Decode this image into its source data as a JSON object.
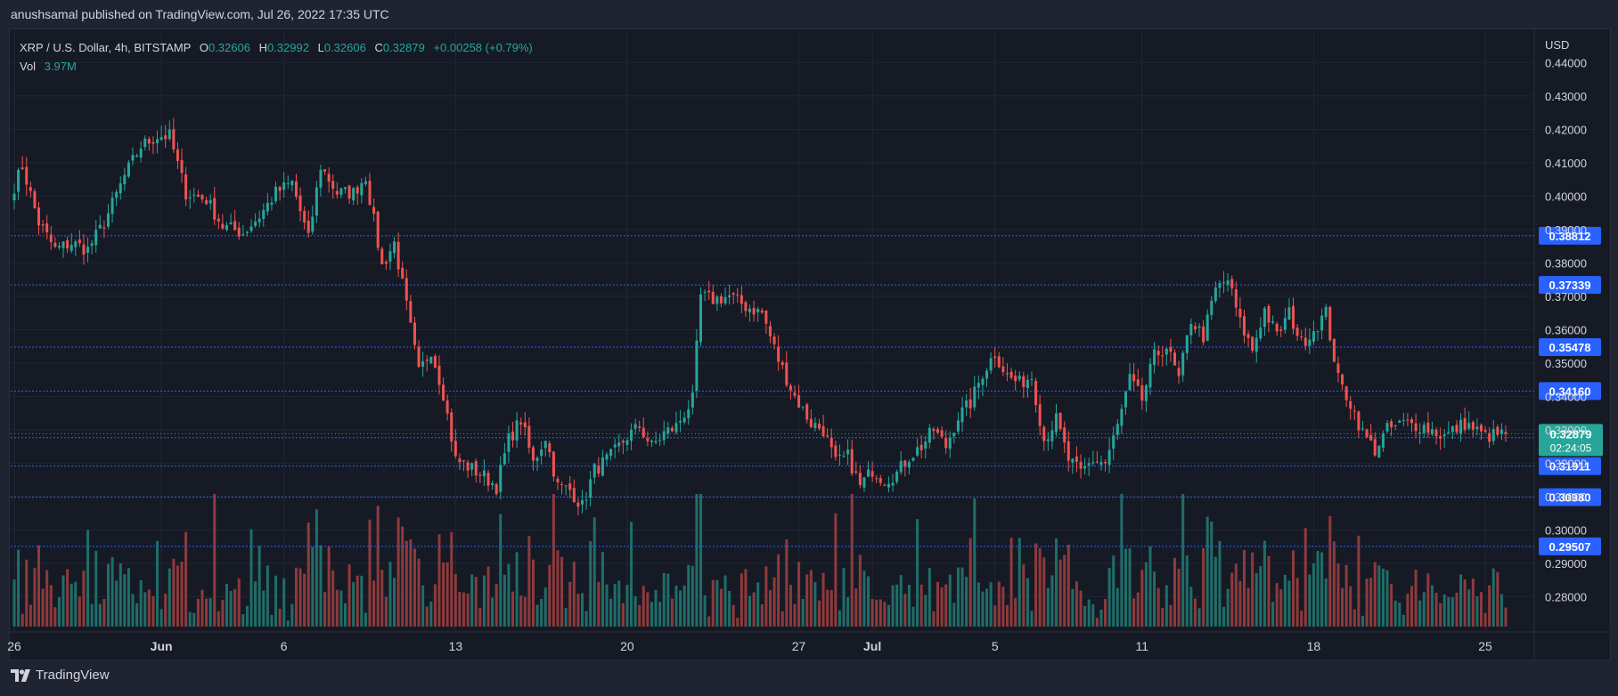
{
  "header": {
    "published_text": "anushsamal published on TradingView.com, Jul 26, 2022 17:35 UTC"
  },
  "brand": {
    "name": "TradingView"
  },
  "legend": {
    "symbol": "XRP / U.S. Dollar, 4h, BITSTAMP",
    "o_label": "O",
    "o_value": "0.32606",
    "h_label": "H",
    "h_value": "0.32992",
    "l_label": "L",
    "l_value": "0.32606",
    "c_label": "C",
    "c_value": "0.32879",
    "change": "+0.00258 (+0.79%)",
    "vol_label": "Vol",
    "vol_value": "3.97M"
  },
  "colors": {
    "up": "#26a69a",
    "down": "#ef5350",
    "up_vol": "#1f6e69",
    "down_vol": "#8e3a3c",
    "level_line": "#2962ff",
    "level_tag": "#2962ff",
    "price_tag": "#26a69a",
    "grid": "#232733",
    "background": "#161a25",
    "axis_text": "#d1d4dc"
  },
  "chart_data": {
    "type": "candlestick",
    "symbol": "XRP / U.S. Dollar",
    "interval": "4h",
    "exchange": "BITSTAMP",
    "currency_label": "USD",
    "y_ticks": [
      "0.44000",
      "0.43000",
      "0.42000",
      "0.41000",
      "0.40000",
      "0.39000",
      "0.38000",
      "0.37000",
      "0.36000",
      "0.35000",
      "0.34000",
      "0.33000",
      "0.32000",
      "0.31000",
      "0.30000",
      "0.29000",
      "0.28000"
    ],
    "ylim": [
      0.2745,
      0.4465
    ],
    "x_ticks": [
      {
        "label": "26",
        "index": 0
      },
      {
        "label": "Jun",
        "index": 36
      },
      {
        "label": "6",
        "index": 66
      },
      {
        "label": "13",
        "index": 108
      },
      {
        "label": "20",
        "index": 150
      },
      {
        "label": "27",
        "index": 192
      },
      {
        "label": "Jul",
        "index": 210
      },
      {
        "label": "5",
        "index": 240
      },
      {
        "label": "11",
        "index": 276
      },
      {
        "label": "18",
        "index": 318
      },
      {
        "label": "25",
        "index": 360
      }
    ],
    "total_candles": 366,
    "horizontal_levels": [
      "0.38812",
      "0.37339",
      "0.35478",
      "0.34160",
      "0.32764",
      "0.31911",
      "0.30980",
      "0.29507"
    ],
    "current_price": "0.32879",
    "countdown": "02:24:05",
    "last_close": 0.32879,
    "anchors": [
      [
        0,
        0.403
      ],
      [
        2,
        0.409
      ],
      [
        6,
        0.392
      ],
      [
        10,
        0.384
      ],
      [
        14,
        0.386
      ],
      [
        18,
        0.384
      ],
      [
        22,
        0.392
      ],
      [
        27,
        0.406
      ],
      [
        31,
        0.415
      ],
      [
        35,
        0.418
      ],
      [
        38,
        0.418
      ],
      [
        42,
        0.401
      ],
      [
        47,
        0.399
      ],
      [
        51,
        0.391
      ],
      [
        56,
        0.389
      ],
      [
        60,
        0.394
      ],
      [
        64,
        0.401
      ],
      [
        68,
        0.404
      ],
      [
        72,
        0.387
      ],
      [
        75,
        0.409
      ],
      [
        79,
        0.401
      ],
      [
        83,
        0.401
      ],
      [
        86,
        0.406
      ],
      [
        90,
        0.379
      ],
      [
        93,
        0.386
      ],
      [
        96,
        0.367
      ],
      [
        99,
        0.347
      ],
      [
        102,
        0.354
      ],
      [
        105,
        0.341
      ],
      [
        108,
        0.321
      ],
      [
        111,
        0.319
      ],
      [
        115,
        0.316
      ],
      [
        118,
        0.313
      ],
      [
        121,
        0.327
      ],
      [
        124,
        0.333
      ],
      [
        127,
        0.32
      ],
      [
        130,
        0.328
      ],
      [
        133,
        0.313
      ],
      [
        136,
        0.312
      ],
      [
        139,
        0.307
      ],
      [
        142,
        0.318
      ],
      [
        146,
        0.322
      ],
      [
        150,
        0.328
      ],
      [
        153,
        0.331
      ],
      [
        156,
        0.325
      ],
      [
        159,
        0.329
      ],
      [
        162,
        0.331
      ],
      [
        166,
        0.339
      ],
      [
        168,
        0.37
      ],
      [
        171,
        0.369
      ],
      [
        175,
        0.37
      ],
      [
        179,
        0.367
      ],
      [
        183,
        0.365
      ],
      [
        187,
        0.351
      ],
      [
        191,
        0.34
      ],
      [
        195,
        0.332
      ],
      [
        198,
        0.33
      ],
      [
        201,
        0.32
      ],
      [
        204,
        0.322
      ],
      [
        207,
        0.313
      ],
      [
        210,
        0.318
      ],
      [
        213,
        0.315
      ],
      [
        216,
        0.317
      ],
      [
        219,
        0.322
      ],
      [
        222,
        0.325
      ],
      [
        225,
        0.33
      ],
      [
        228,
        0.325
      ],
      [
        231,
        0.334
      ],
      [
        234,
        0.338
      ],
      [
        237,
        0.347
      ],
      [
        240,
        0.353
      ],
      [
        243,
        0.346
      ],
      [
        246,
        0.344
      ],
      [
        249,
        0.346
      ],
      [
        252,
        0.327
      ],
      [
        255,
        0.333
      ],
      [
        258,
        0.321
      ],
      [
        261,
        0.317
      ],
      [
        264,
        0.321
      ],
      [
        267,
        0.32
      ],
      [
        270,
        0.331
      ],
      [
        273,
        0.345
      ],
      [
        276,
        0.339
      ],
      [
        279,
        0.352
      ],
      [
        282,
        0.355
      ],
      [
        285,
        0.345
      ],
      [
        288,
        0.363
      ],
      [
        291,
        0.358
      ],
      [
        294,
        0.372
      ],
      [
        297,
        0.375
      ],
      [
        300,
        0.362
      ],
      [
        303,
        0.354
      ],
      [
        306,
        0.366
      ],
      [
        309,
        0.358
      ],
      [
        312,
        0.365
      ],
      [
        315,
        0.356
      ],
      [
        318,
        0.36
      ],
      [
        321,
        0.365
      ],
      [
        324,
        0.345
      ],
      [
        327,
        0.338
      ],
      [
        330,
        0.329
      ],
      [
        333,
        0.324
      ],
      [
        336,
        0.33
      ],
      [
        340,
        0.332
      ],
      [
        345,
        0.331
      ],
      [
        350,
        0.328
      ],
      [
        355,
        0.332
      ],
      [
        360,
        0.328
      ],
      [
        365,
        0.32879
      ]
    ]
  }
}
